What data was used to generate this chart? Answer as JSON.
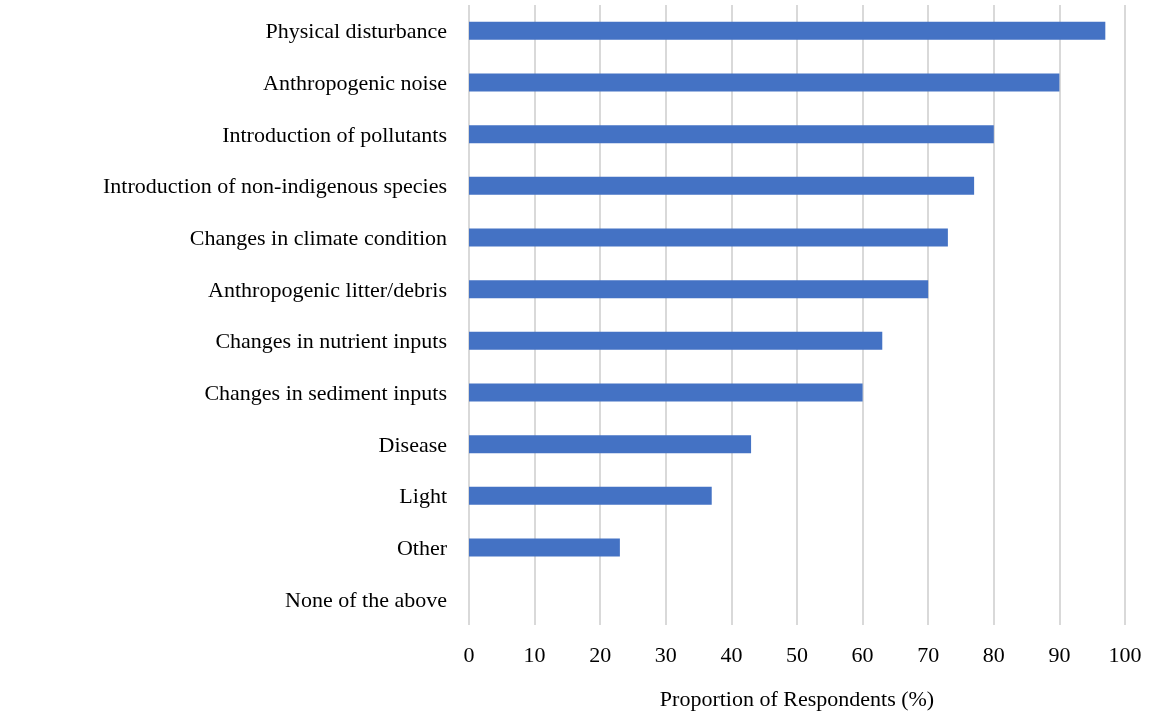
{
  "chart_data": {
    "type": "bar",
    "orientation": "horizontal",
    "xlabel": "Proportion of Respondents (%)",
    "categories": [
      "Physical disturbance",
      "Anthropogenic noise",
      "Introduction of pollutants",
      "Introduction of non-indigenous species",
      "Changes in climate condition",
      "Anthropogenic litter/debris",
      "Changes in nutrient inputs",
      "Changes in sediment inputs",
      "Disease",
      "Light",
      "Other",
      "None of the above"
    ],
    "values": [
      97,
      90,
      80,
      77,
      73,
      70,
      63,
      60,
      43,
      37,
      23,
      0
    ],
    "color": "#4472c4",
    "xlim": [
      0,
      100
    ],
    "xticks": [
      0,
      10,
      20,
      30,
      40,
      50,
      60,
      70,
      80,
      90,
      100
    ],
    "grid": "x"
  }
}
